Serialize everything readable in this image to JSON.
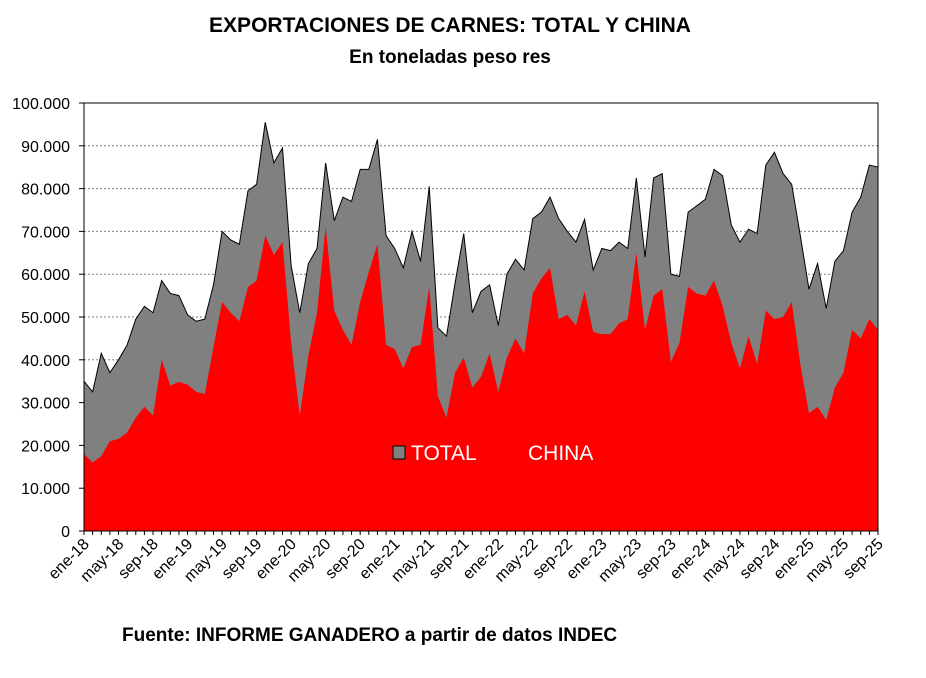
{
  "header": {
    "title": "EXPORTACIONES DE CARNES: TOTAL Y CHINA",
    "subtitle": "En toneladas peso res"
  },
  "footer": {
    "source": "Fuente: INFORME GANADERO a partir de datos INDEC"
  },
  "colors": {
    "total": "#808080",
    "china": "#ff0000",
    "grid": "#808080"
  },
  "chart_data": {
    "type": "area",
    "title": "EXPORTACIONES DE CARNES: TOTAL Y CHINA",
    "subtitle": "En toneladas peso res",
    "xlabel": "",
    "ylabel": "",
    "ylim": [
      0,
      100000
    ],
    "y_ticks": [
      "0",
      "10.000",
      "20.000",
      "30.000",
      "40.000",
      "50.000",
      "60.000",
      "70.000",
      "80.000",
      "90.000",
      "100.000"
    ],
    "y_tick_values": [
      0,
      10000,
      20000,
      30000,
      40000,
      50000,
      60000,
      70000,
      80000,
      90000,
      100000
    ],
    "x_start": "2018-01",
    "x_end": "2025-09",
    "x_ticks": [
      "ene-18",
      "may-18",
      "sep-18",
      "ene-19",
      "may-19",
      "sep-19",
      "ene-20",
      "may-20",
      "sep-20",
      "ene-21",
      "may-21",
      "sep-21",
      "ene-22",
      "may-22",
      "sep-22",
      "ene-23",
      "may-23",
      "sep-23",
      "ene-24",
      "may-24",
      "sep-24",
      "ene-25",
      "may-25",
      "sep-25"
    ],
    "grid": "horizontal dashed",
    "legend": "center, inside plot",
    "series": [
      {
        "name": "TOTAL",
        "values": [
          35000,
          32500,
          41500,
          37000,
          40000,
          43500,
          49500,
          52500,
          51000,
          58500,
          55500,
          55000,
          50500,
          49000,
          49500,
          57500,
          70000,
          68000,
          67000,
          79500,
          81000,
          95500,
          86000,
          89500,
          62000,
          51000,
          62500,
          66000,
          86000,
          72500,
          78000,
          77000,
          84500,
          84500,
          91500,
          69000,
          66000,
          61500,
          70000,
          63000,
          80500,
          47500,
          45500,
          58000,
          69500,
          51000,
          56000,
          57500,
          48000,
          60000,
          63500,
          61000,
          73000,
          74500,
          78000,
          73000,
          70000,
          67500,
          72800,
          61000,
          66000,
          65500,
          67500,
          66000,
          82500,
          64000,
          82500,
          83500,
          60000,
          59500,
          74500,
          76000,
          77500,
          84500,
          83000,
          71500,
          67500,
          70500,
          69500,
          85500,
          88500,
          83500,
          81000,
          69000,
          56500,
          62500,
          52000,
          63000,
          65500,
          74500,
          78000,
          85500,
          85000
        ]
      },
      {
        "name": "CHINA",
        "values": [
          18000,
          16000,
          17500,
          21000,
          21500,
          23000,
          26500,
          29000,
          27000,
          40000,
          34000,
          34800,
          34200,
          32500,
          32000,
          43000,
          53500,
          51000,
          49000,
          57000,
          58500,
          69000,
          64500,
          67500,
          44000,
          27000,
          41000,
          51000,
          71000,
          51500,
          47000,
          43500,
          53500,
          60500,
          67000,
          43500,
          42500,
          38000,
          43000,
          43500,
          57000,
          31500,
          26500,
          37000,
          40500,
          33500,
          36000,
          41500,
          32500,
          40500,
          45000,
          41500,
          55500,
          59000,
          61500,
          49500,
          50500,
          48000,
          56000,
          46500,
          46000,
          46000,
          48500,
          49500,
          65000,
          47000,
          55000,
          56500,
          39500,
          44000,
          57000,
          55500,
          55000,
          58500,
          52500,
          44000,
          38000,
          45500,
          39000,
          51500,
          49500,
          50000,
          53500,
          39000,
          27500,
          29000,
          26000,
          33500,
          37000,
          47000,
          45000,
          49500,
          47000
        ]
      }
    ]
  }
}
